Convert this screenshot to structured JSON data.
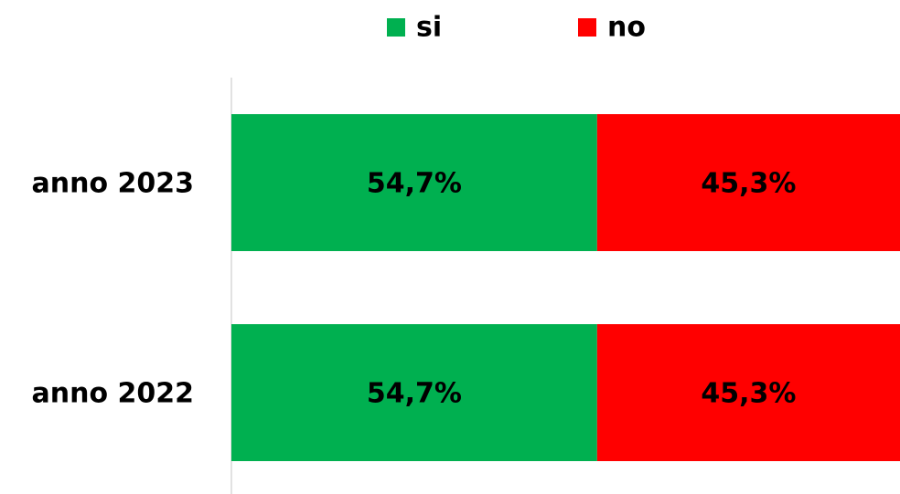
{
  "chart_data": {
    "type": "bar",
    "orientation": "horizontal",
    "stacked": true,
    "categories": [
      "anno 2023",
      "anno 2022"
    ],
    "series": [
      {
        "name": "si",
        "color": "#00b050",
        "values": [
          54.7,
          54.7
        ],
        "value_labels": [
          "54,7%",
          "54,7%"
        ]
      },
      {
        "name": "no",
        "color": "#ff0000",
        "values": [
          45.3,
          45.3
        ],
        "value_labels": [
          "45,3%",
          "45,3%"
        ]
      }
    ],
    "xlim": [
      0,
      100
    ]
  }
}
